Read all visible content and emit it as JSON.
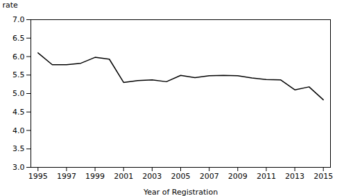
{
  "chart_data": {
    "type": "line",
    "xlabel": "Year of Registration",
    "ylabel": "rate",
    "x": [
      1995,
      1996,
      1997,
      1998,
      1999,
      2000,
      2001,
      2002,
      2003,
      2004,
      2005,
      2006,
      2007,
      2008,
      2009,
      2010,
      2011,
      2012,
      2013,
      2014,
      2015
    ],
    "values": [
      6.1,
      5.78,
      5.78,
      5.82,
      5.98,
      5.93,
      5.3,
      5.35,
      5.37,
      5.32,
      5.49,
      5.43,
      5.48,
      5.49,
      5.48,
      5.42,
      5.38,
      5.37,
      5.1,
      5.18,
      4.83
    ],
    "color": "#000000",
    "xlim": [
      1994.5,
      2015.5
    ],
    "xticks": [
      1995,
      1997,
      1999,
      2001,
      2003,
      2005,
      2007,
      2009,
      2011,
      2013,
      2015
    ],
    "ylim": [
      3.0,
      7.0
    ],
    "yticks": [
      {
        "value": 3.0,
        "label": "3.0"
      },
      {
        "value": 3.5,
        "label": "3.5"
      },
      {
        "value": 4.0,
        "label": "4.0"
      },
      {
        "value": 4.5,
        "label": "4.5"
      },
      {
        "value": 5.0,
        "label": "5.0"
      },
      {
        "value": 5.5,
        "label": "5.5"
      },
      {
        "value": 6.0,
        "label": "6.0"
      },
      {
        "value": 6.5,
        "label": "6.5"
      },
      {
        "value": 7.0,
        "label": "7.0"
      }
    ],
    "grid": false
  }
}
